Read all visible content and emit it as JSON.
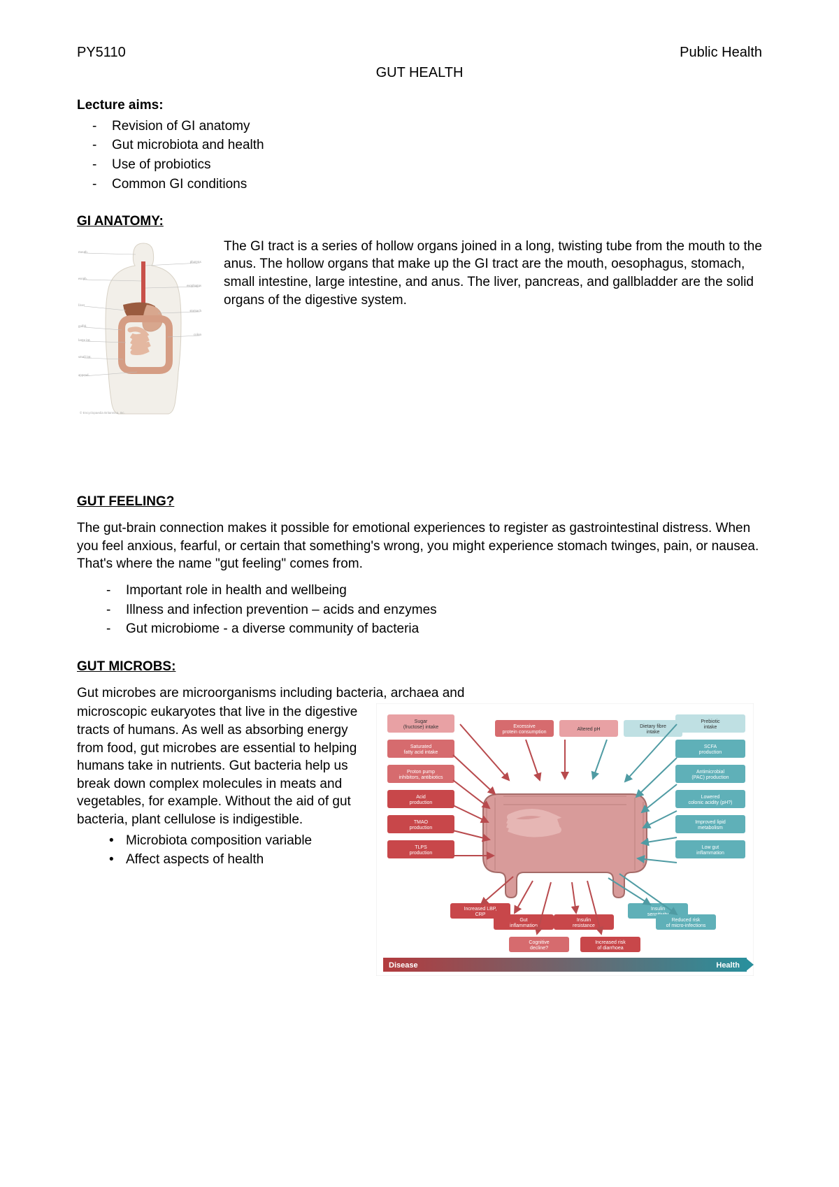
{
  "header": {
    "course": "PY5110",
    "subject": "Public Health"
  },
  "title": "GUT HEALTH",
  "lecture_aims": {
    "heading": "Lecture aims:",
    "items": [
      "Revision of GI anatomy",
      "Gut microbiota and health",
      "Use of probiotics",
      "Common GI conditions"
    ]
  },
  "gi_anatomy": {
    "heading": "GI ANATOMY:",
    "text": "The GI tract is a series of hollow organs joined in a long, twisting tube from the mouth to the anus. The hollow organs that make up the GI tract are the mouth, oesophagus, stomach, small intestine, large intestine, and anus. The liver, pancreas, and gallbladder are the solid organs of the digestive system.",
    "figure": {
      "type": "anatomical-diagram",
      "body_fill": "#f2efe9",
      "body_stroke": "#d8d2c6",
      "esophagus_color": "#c8514a",
      "liver_color": "#9a5b3f",
      "stomach_color": "#d8a78e",
      "intestine_color": "#e4b8a1",
      "label_color": "#777777",
      "label_fontsize": 5
    }
  },
  "gut_feeling": {
    "heading": "GUT FEELING?",
    "text": "The gut-brain connection makes it possible for emotional experiences to register as gastrointestinal distress. When you feel anxious, fearful, or certain that something's wrong, you might experience stomach twinges, pain, or nausea. That's where the name \"gut feeling\" comes from.",
    "items": [
      "Important role in health and wellbeing",
      "Illness and infection prevention – acids and enzymes",
      "Gut microbiome - a diverse community of bacteria"
    ]
  },
  "gut_microbs": {
    "heading": "GUT MICROBS:",
    "lead": "Gut microbes are microorganisms including bacteria, archaea and",
    "text": "microscopic eukaryotes that live in the digestive tracts of humans. As well as absorbing energy from food, gut microbes are essential to helping humans take in nutrients. Gut bacteria help us break down complex molecules in meats and vegetables, for example. Without the aid of gut bacteria, plant cellulose is indigestible.",
    "items": [
      "Microbiota composition variable",
      "Affect aspects of health"
    ],
    "diagram": {
      "type": "infographic",
      "background": "#ffffff",
      "intestine_fill": "#d89b9a",
      "intestine_stroke": "#a56b68",
      "gradient_start": "#b33b3e",
      "gradient_end": "#2a8f9c",
      "footer_left": "Disease",
      "footer_right": "Health",
      "footer_fontsize": 10,
      "left_boxes": [
        {
          "label": "Sugar (fructose) intake",
          "color": "#e8a1a4"
        },
        {
          "label": "Saturated fatty acid intake",
          "color": "#d66b6e"
        },
        {
          "label": "Proton pump inhibitors, antibiotics",
          "color": "#d66b6e"
        },
        {
          "label": "Acid production",
          "color": "#c8474a"
        },
        {
          "label": "TMAO production",
          "color": "#c8474a"
        },
        {
          "label": "TLPS production",
          "color": "#c8474a"
        }
      ],
      "top_boxes": [
        {
          "label": "Excessive protein consumption",
          "color": "#d66b6e"
        },
        {
          "label": "Altered pH",
          "color": "#e8a1a4"
        },
        {
          "label": "Dietary fibre intake",
          "color": "#bfe0e3"
        }
      ],
      "right_boxes": [
        {
          "label": "Prebiotic intake",
          "color": "#bfe0e3"
        },
        {
          "label": "SCFA production",
          "color": "#5fb0b8"
        },
        {
          "label": "Antimicrobial (PAC) production",
          "color": "#5fb0b8"
        },
        {
          "label": "Lowered colonic acidity (pH?)",
          "color": "#5fb0b8"
        },
        {
          "label": "Improved lipid metabolism",
          "color": "#5fb0b8"
        },
        {
          "label": "Low gut inflammation",
          "color": "#5fb0b8"
        }
      ],
      "bottom_boxes": [
        {
          "label": "Increased LBP, CRP",
          "color": "#c8474a"
        },
        {
          "label": "Gut inflammation",
          "color": "#c8474a"
        },
        {
          "label": "Cognitive decline?",
          "color": "#d66b6e"
        },
        {
          "label": "Insulin resistance",
          "color": "#c8474a"
        },
        {
          "label": "Increased risk of diarrhoea",
          "color": "#c8474a"
        },
        {
          "label": "Insulin sensitivity",
          "color": "#5fb0b8"
        },
        {
          "label": "Reduced risk of micro-infections",
          "color": "#5fb0b8"
        }
      ],
      "box_fontsize": 7,
      "arrow_red": "#b84a4d",
      "arrow_teal": "#4f9ba3"
    }
  }
}
